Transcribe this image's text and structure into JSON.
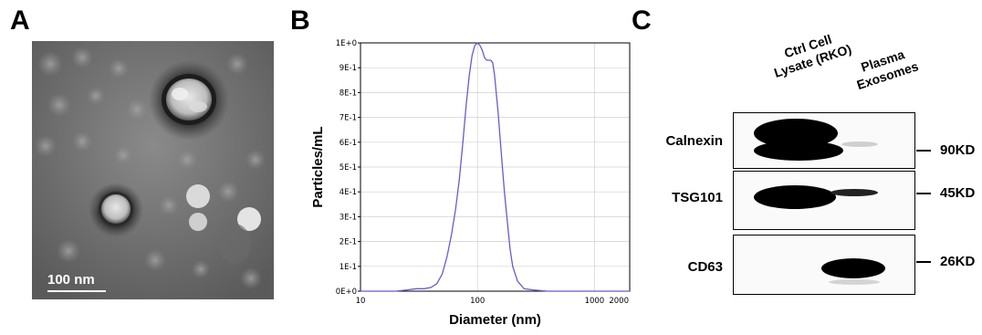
{
  "panels": {
    "a": {
      "letter": "A",
      "scale_bar": "100 nm"
    },
    "b": {
      "letter": "B"
    },
    "c": {
      "letter": "C",
      "lanes": [
        [
          "Ctrl Cell",
          "Lysate (RKO)"
        ],
        [
          "Plasma",
          "Exosomes"
        ]
      ],
      "rows": [
        {
          "label": "Calnexin",
          "marker": "90KD"
        },
        {
          "label": "TSG101",
          "marker": "45KD"
        },
        {
          "label": "CD63",
          "marker": "26KD"
        }
      ]
    }
  },
  "chart_data": {
    "type": "line",
    "title": "",
    "xlabel": "Diameter (nm)",
    "ylabel": "Particles/mL",
    "x_scale": "log",
    "xlim": [
      10,
      2000
    ],
    "ylim": [
      0,
      1
    ],
    "x_ticks": [
      10,
      100,
      1000,
      2000
    ],
    "x_tick_labels": [
      "10",
      "100",
      "1000",
      "2000"
    ],
    "y_ticks": [
      0,
      0.1,
      0.2,
      0.3,
      0.4,
      0.5,
      0.6,
      0.7,
      0.8,
      0.9,
      1.0
    ],
    "y_tick_labels": [
      "0E+0",
      "1E-1",
      "2E-1",
      "3E-1",
      "4E-1",
      "5E-1",
      "6E-1",
      "7E-1",
      "8E-1",
      "9E-1",
      "1E+0"
    ],
    "grid": true,
    "line_color": "#6a5acd",
    "series": [
      {
        "x": [
          10,
          15,
          20,
          25,
          30,
          35,
          40,
          45,
          50,
          55,
          60,
          65,
          70,
          75,
          80,
          85,
          90,
          95,
          100,
          105,
          110,
          115,
          120,
          125,
          130,
          135,
          140,
          150,
          160,
          170,
          180,
          190,
          200,
          220,
          250,
          300,
          400,
          600,
          1000,
          1500,
          2000
        ],
        "y": [
          0.0,
          0.0,
          0.0,
          0.005,
          0.01,
          0.01,
          0.015,
          0.03,
          0.07,
          0.14,
          0.23,
          0.33,
          0.45,
          0.6,
          0.75,
          0.87,
          0.95,
          0.99,
          1.0,
          0.99,
          0.97,
          0.94,
          0.93,
          0.93,
          0.93,
          0.92,
          0.87,
          0.72,
          0.55,
          0.4,
          0.28,
          0.17,
          0.1,
          0.04,
          0.01,
          0.005,
          0.0,
          0.0,
          0.0,
          0.0,
          0.0
        ]
      }
    ]
  }
}
